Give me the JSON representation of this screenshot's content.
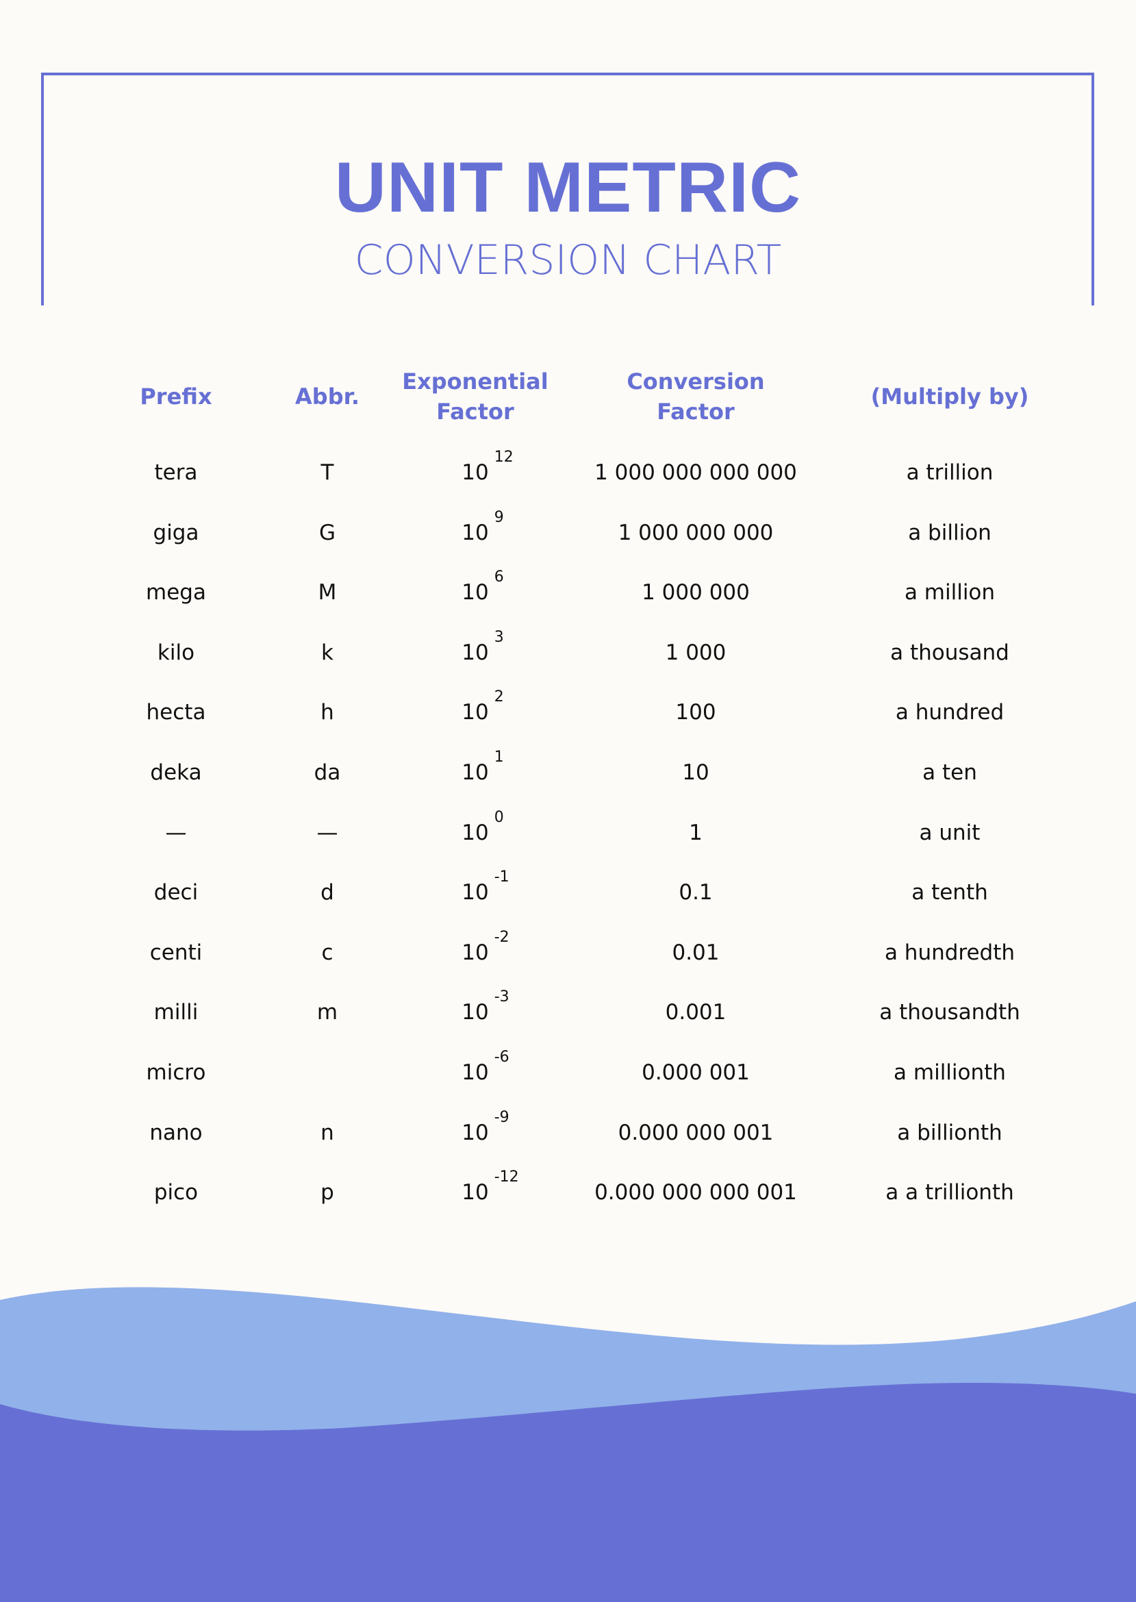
{
  "header": {
    "title": "UNIT METRIC",
    "subtitle": "CONVERSION CHART"
  },
  "table": {
    "columns": [
      "Prefix",
      "Abbr.",
      "Exponential Factor",
      "Conversion Factor",
      "(Multiply by)"
    ],
    "rows": [
      {
        "prefix": "tera",
        "abbr": "T",
        "base": "10",
        "exp": "12",
        "factor": "1 000 000 000 000",
        "multiply": "a trillion"
      },
      {
        "prefix": "giga",
        "abbr": "G",
        "base": "10",
        "exp": "9",
        "factor": "1 000 000 000",
        "multiply": "a billion"
      },
      {
        "prefix": "mega",
        "abbr": "M",
        "base": "10",
        "exp": "6",
        "factor": "1 000 000",
        "multiply": "a million"
      },
      {
        "prefix": "kilo",
        "abbr": "k",
        "base": "10",
        "exp": "3",
        "factor": "1 000",
        "multiply": "a thousand"
      },
      {
        "prefix": "hecta",
        "abbr": "h",
        "base": "10",
        "exp": "2",
        "factor": "100",
        "multiply": "a hundred"
      },
      {
        "prefix": "deka",
        "abbr": "da",
        "base": "10",
        "exp": "1",
        "factor": "10",
        "multiply": "a ten"
      },
      {
        "prefix": "—",
        "abbr": "—",
        "base": "10",
        "exp": "0",
        "factor": "1",
        "multiply": "a unit"
      },
      {
        "prefix": "deci",
        "abbr": "d",
        "base": "10",
        "exp": "-1",
        "factor": "0.1",
        "multiply": "a tenth"
      },
      {
        "prefix": "centi",
        "abbr": "c",
        "base": "10",
        "exp": "-2",
        "factor": "0.01",
        "multiply": "a hundredth"
      },
      {
        "prefix": "milli",
        "abbr": "m",
        "base": "10",
        "exp": "-3",
        "factor": "0.001",
        "multiply": "a thousandth"
      },
      {
        "prefix": "micro",
        "abbr": "",
        "base": "10",
        "exp": "-6",
        "factor": "0.000 001",
        "multiply": "a millionth"
      },
      {
        "prefix": "nano",
        "abbr": "n",
        "base": "10",
        "exp": "-9",
        "factor": "0.000 000 001",
        "multiply": "a billionth"
      },
      {
        "prefix": "pico",
        "abbr": "p",
        "base": "10",
        "exp": "-12",
        "factor": "0.000 000 000 001",
        "multiply": "a a trillionth"
      }
    ]
  },
  "colors": {
    "accent": "#6670d4",
    "wave_light": "#91b1ea",
    "wave_dark": "#6670d4",
    "background": "#fdfbf7"
  }
}
